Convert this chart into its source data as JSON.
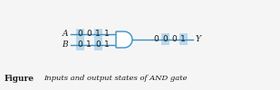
{
  "title_label": "Figure",
  "caption": "Inputs and output states of AND gate",
  "input_A": [
    "0",
    "0",
    "1",
    "1"
  ],
  "input_B": [
    "0",
    "1",
    "0",
    "1"
  ],
  "output_Y": [
    "0",
    "0",
    "0",
    "1"
  ],
  "label_A": "A",
  "label_B": "B",
  "label_Y": "Y",
  "bg_color": "#f5f5f5",
  "highlight_color": "#b8d8ed",
  "text_color": "#1a1a1a",
  "line_color": "#3a8fc4",
  "line_width": 1.0,
  "bit_fontsize": 6.5,
  "label_fontsize": 6.5,
  "caption_fontsize": 6.0,
  "fig_label_fontsize": 6.5,
  "highlight_indices_in": [
    0,
    2
  ],
  "highlight_indices_out": [
    1,
    3
  ],
  "gate_fill": "#ffffff"
}
